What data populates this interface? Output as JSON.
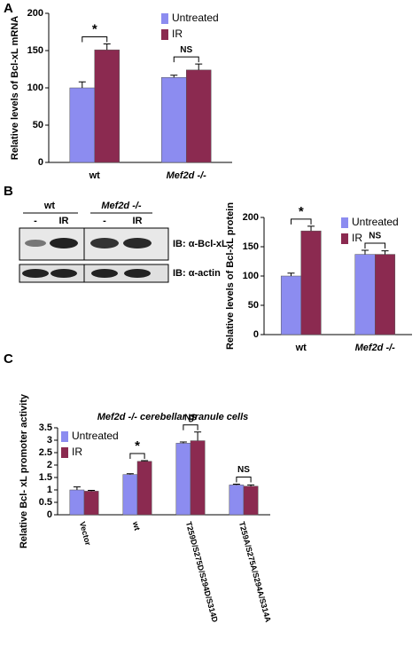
{
  "panels": [
    "A",
    "B",
    "C"
  ],
  "blot": {
    "groups": [
      "wt",
      "Mef2d -/-"
    ],
    "lanes": [
      "-",
      "IR",
      "-",
      "IR"
    ],
    "rows": [
      "IB: α-Bcl-xL",
      "IB: α-actin"
    ]
  },
  "chart_data": [
    {
      "type": "bar",
      "y_label": "Relative levels of Bcl-xL mRNA",
      "categories": [
        "wt",
        "Mef2d -/-"
      ],
      "series": [
        {
          "name": "Untreated",
          "color": "#8c8cf0",
          "values": [
            100,
            114
          ],
          "errors": [
            8,
            3
          ]
        },
        {
          "name": "IR",
          "color": "#8b2a50",
          "values": [
            151,
            124
          ],
          "errors": [
            8,
            8
          ]
        }
      ],
      "annotations": [
        "*",
        "NS"
      ],
      "ylim": [
        0,
        200
      ],
      "yticks": [
        0,
        50,
        100,
        150,
        200
      ],
      "legend": "upper right"
    },
    {
      "type": "bar",
      "y_label": "Relative levels of Bcl-xL protein",
      "categories": [
        "wt",
        "Mef2d -/-"
      ],
      "series": [
        {
          "name": "Untreated",
          "color": "#8c8cf0",
          "values": [
            100,
            137
          ],
          "errors": [
            5,
            7
          ]
        },
        {
          "name": "IR",
          "color": "#8b2a50",
          "values": [
            177,
            137
          ],
          "errors": [
            8,
            6
          ]
        }
      ],
      "annotations": [
        "*",
        "NS"
      ],
      "ylim": [
        0,
        200
      ],
      "yticks": [
        0,
        50,
        100,
        150,
        200
      ],
      "legend": "upper right"
    },
    {
      "type": "bar",
      "title": "Mef2d -/- cerebellar granule cells",
      "y_label": "Relative Bcl- xL promoter activity",
      "categories": [
        "Vector",
        "wt",
        "T259D/S275D/S294D/S314D",
        "T259A/S275A/S294A/S314A"
      ],
      "series": [
        {
          "name": "Untreated",
          "color": "#8c8cf0",
          "values": [
            1.0,
            1.62,
            2.88,
            1.2
          ],
          "errors": [
            0.12,
            0.03,
            0.05,
            0.03
          ]
        },
        {
          "name": "IR",
          "color": "#8b2a50",
          "values": [
            0.95,
            2.15,
            2.98,
            1.15
          ],
          "errors": [
            0.03,
            0.03,
            0.35,
            0.05
          ]
        }
      ],
      "annotations": [
        null,
        "*",
        "NS",
        "NS"
      ],
      "ylim": [
        0,
        3.5
      ],
      "yticks": [
        0,
        0.5,
        1,
        1.5,
        2,
        2.5,
        3,
        3.5
      ],
      "legend": "upper left"
    }
  ]
}
